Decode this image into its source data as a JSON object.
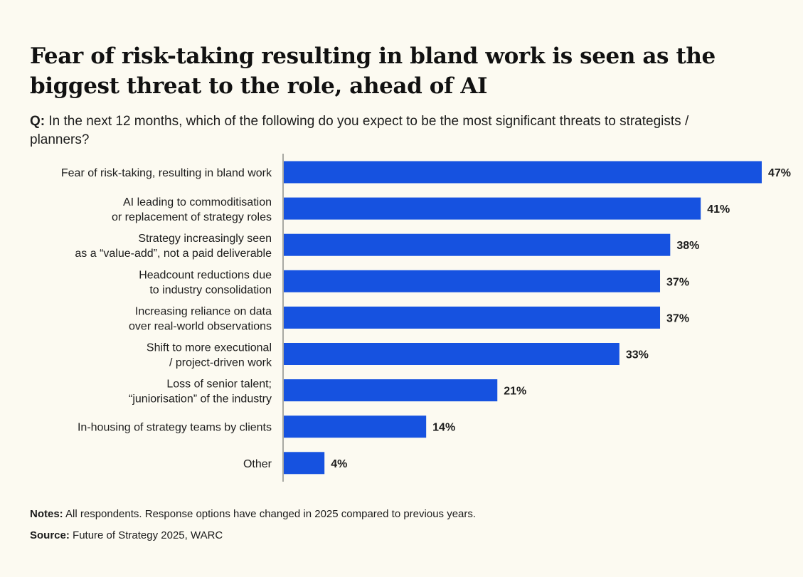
{
  "title": "Fear of risk-taking resulting in bland work is seen as the biggest threat to the role, ahead of AI",
  "question": {
    "prefix": "Q:",
    "text": "In the next 12 months, which of the following do you expect to be the most significant threats to strategists / planners?"
  },
  "notes": {
    "label": "Notes:",
    "text": "All respondents. Response options have changed in 2025 compared to previous years."
  },
  "source": {
    "label": "Source:",
    "text": "Future of Strategy 2025, WARC"
  },
  "colors": {
    "bar": "#1652e0",
    "axis": "#555555",
    "text": "#1c1c1c"
  },
  "chart_data": {
    "type": "bar",
    "orientation": "horizontal",
    "title": "Fear of risk-taking resulting in bland work is seen as the biggest threat to the role, ahead of AI",
    "xlabel": "",
    "ylabel": "",
    "xlim": [
      0,
      47
    ],
    "unit": "%",
    "categories": [
      [
        "Fear of risk-taking, resulting in bland work"
      ],
      [
        "AI leading to commoditisation",
        "or replacement of strategy roles"
      ],
      [
        "Strategy increasingly seen",
        "as a “value-add”, not a paid deliverable"
      ],
      [
        "Headcount reductions due",
        "to industry consolidation"
      ],
      [
        "Increasing reliance on data",
        "over real-world observations"
      ],
      [
        "Shift to more executional",
        "/ project-driven work"
      ],
      [
        "Loss of senior talent;",
        "“juniorisation” of the industry"
      ],
      [
        "In-housing of strategy teams by clients"
      ],
      [
        "Other"
      ]
    ],
    "values": [
      47,
      41,
      38,
      37,
      37,
      33,
      21,
      14,
      4
    ],
    "labels": [
      "47%",
      "41%",
      "38%",
      "37%",
      "37%",
      "33%",
      "21%",
      "14%",
      "4%"
    ]
  }
}
